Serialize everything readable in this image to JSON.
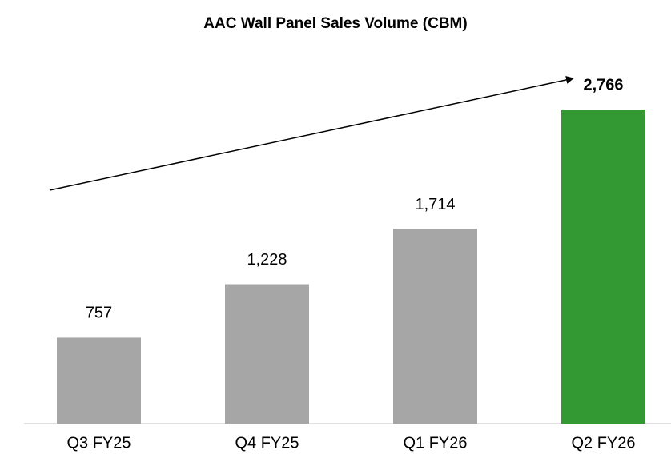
{
  "chart_data": {
    "type": "bar",
    "title": "AAC Wall Panel Sales Volume (CBM)",
    "categories": [
      "Q3 FY25",
      "Q4 FY25",
      "Q1 FY26",
      "Q2 FY26"
    ],
    "values": [
      757,
      1228,
      1714,
      2766
    ],
    "value_labels": [
      "757",
      "1,228",
      "1,714",
      "2,766"
    ],
    "colors": [
      "#a6a6a6",
      "#a6a6a6",
      "#a6a6a6",
      "#339933"
    ]
  }
}
